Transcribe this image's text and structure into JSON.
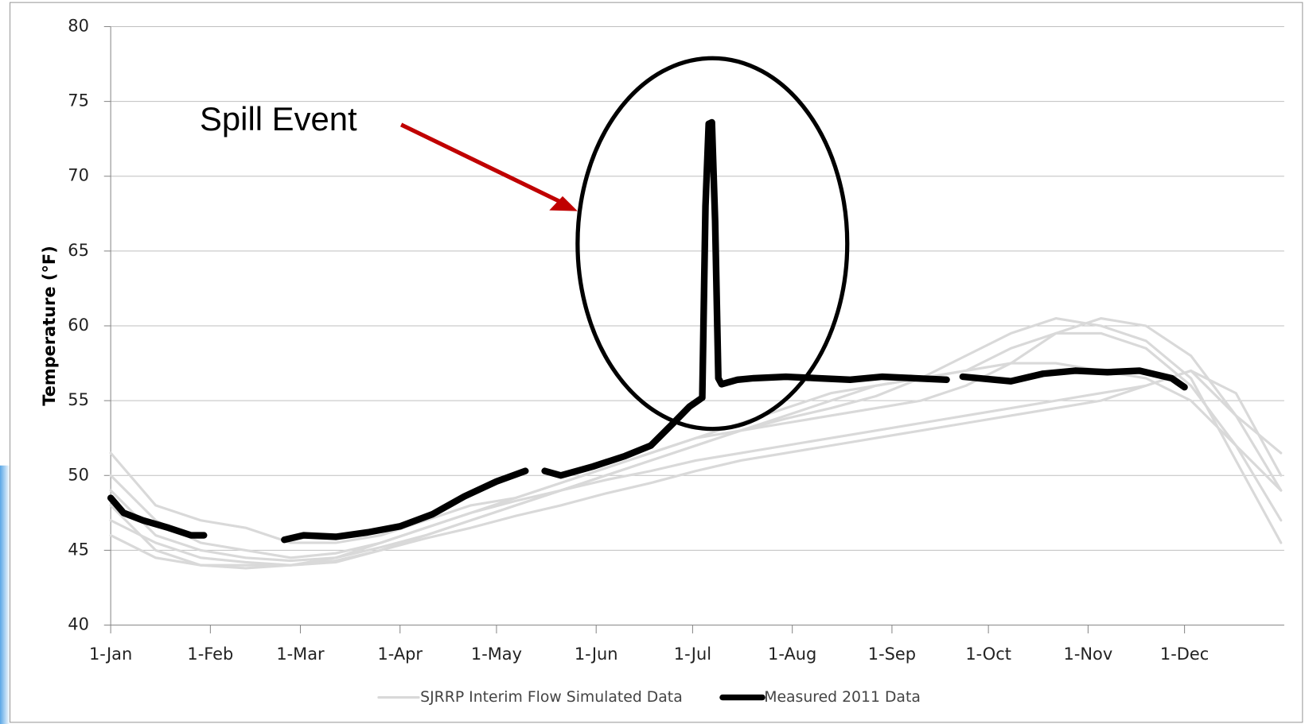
{
  "chart_data": {
    "type": "line",
    "y_label": "Temperature (°F)",
    "annotation": "Spill Event",
    "xlim": [
      0,
      365
    ],
    "xticks": [
      {
        "value": 0,
        "label": "1-Jan"
      },
      {
        "value": 31,
        "label": "1-Feb"
      },
      {
        "value": 59,
        "label": "1-Mar"
      },
      {
        "value": 90,
        "label": "1-Apr"
      },
      {
        "value": 120,
        "label": "1-May"
      },
      {
        "value": 151,
        "label": "1-Jun"
      },
      {
        "value": 181,
        "label": "1-Jul"
      },
      {
        "value": 212,
        "label": "1-Aug"
      },
      {
        "value": 243,
        "label": "1-Sep"
      },
      {
        "value": 273,
        "label": "1-Oct"
      },
      {
        "value": 304,
        "label": "1-Nov"
      },
      {
        "value": 334,
        "label": "1-Dec"
      }
    ],
    "ylim": [
      40,
      80
    ],
    "yticks": [
      40,
      45,
      50,
      55,
      60,
      65,
      70,
      75,
      80
    ],
    "grid": true,
    "legend": "bottom",
    "x": [
      0,
      14,
      28,
      42,
      56,
      70,
      84,
      98,
      112,
      126,
      140,
      154,
      168,
      182,
      196,
      210,
      224,
      238,
      252,
      266,
      280,
      294,
      308,
      322,
      336,
      350,
      364
    ],
    "series": [
      {
        "name": "SJRRP Interim Flow Simulated Data",
        "color": "#d9d9d9",
        "traces": [
          [
            51.5,
            48,
            47,
            46.5,
            45.5,
            45.5,
            46,
            47,
            48,
            48.5,
            49.5,
            50.5,
            51.5,
            52.5,
            53,
            53.5,
            54,
            54.5,
            55,
            56,
            57.5,
            59.5,
            60.5,
            60,
            58,
            54,
            51.5
          ],
          [
            50,
            47,
            45.5,
            45,
            44.5,
            44.8,
            45.5,
            46.5,
            47.5,
            48.5,
            49.5,
            50.5,
            51.5,
            52.5,
            53.5,
            54.5,
            55.5,
            56,
            56.5,
            57,
            58.5,
            59.5,
            59.5,
            58.5,
            56,
            52,
            49
          ],
          [
            49,
            46,
            45,
            44.5,
            44.3,
            44.5,
            45.2,
            46,
            47,
            48,
            49,
            50,
            51,
            52,
            53,
            54,
            55,
            56,
            56.5,
            57,
            57.5,
            57.5,
            57,
            56.5,
            55,
            52,
            47
          ],
          [
            48,
            45,
            44,
            44,
            44,
            44.2,
            45,
            45.8,
            46.5,
            47.3,
            48,
            48.8,
            49.5,
            50.3,
            51,
            51.5,
            52,
            52.5,
            53,
            53.5,
            54,
            54.5,
            55,
            56,
            57,
            54,
            49
          ],
          [
            47,
            45.5,
            44.5,
            44.2,
            44,
            44.3,
            45,
            46,
            47,
            48,
            49,
            50,
            51,
            52,
            53,
            53.8,
            54.5,
            55.3,
            56.5,
            58,
            59.5,
            60.5,
            60,
            59,
            56.5,
            51,
            45.5
          ],
          [
            46,
            44.5,
            44,
            43.8,
            44,
            44.5,
            45.5,
            46.5,
            47.5,
            48.3,
            49,
            49.7,
            50.3,
            51,
            51.5,
            52,
            52.5,
            53,
            53.5,
            54,
            54.5,
            55,
            55.5,
            56,
            57,
            55.5,
            50
          ]
        ]
      },
      {
        "name": "Measured 2011 Data",
        "color": "#000000",
        "x": [
          0,
          4,
          10,
          18,
          25,
          29,
          30,
          40,
          41,
          54,
          60,
          70,
          80,
          90,
          100,
          110,
          120,
          129,
          130,
          135,
          140,
          150,
          160,
          168,
          175,
          180,
          184,
          185,
          186,
          187,
          188,
          189,
          190,
          195,
          200,
          210,
          220,
          230,
          240,
          250,
          260,
          261,
          265,
          275,
          280,
          290,
          300,
          310,
          320,
          330,
          334
        ],
        "values": [
          48.5,
          47.5,
          47,
          46.5,
          46,
          46,
          null,
          45.9,
          null,
          45.7,
          46,
          45.9,
          46.2,
          46.6,
          47.4,
          48.6,
          49.6,
          50.3,
          null,
          50.3,
          50,
          50.6,
          51.3,
          52,
          53.5,
          54.6,
          55.2,
          68,
          73.5,
          73.6,
          67,
          56.5,
          56.1,
          56.4,
          56.5,
          56.6,
          56.5,
          56.4,
          56.6,
          56.5,
          56.4,
          null,
          56.6,
          56.4,
          56.3,
          56.8,
          57,
          56.9,
          57,
          56.5,
          55.9
        ]
      }
    ]
  }
}
